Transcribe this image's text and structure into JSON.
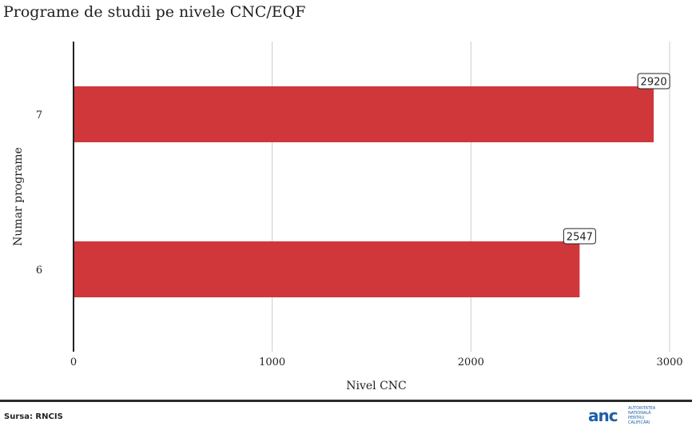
{
  "title": "Programe de studii pe nivele CNC/EQF",
  "source": "Sursa: RNCIS",
  "logo": {
    "word": "anc",
    "lines": [
      "Autoritatea",
      "Națională",
      "pentru",
      "Calificări"
    ]
  },
  "colors": {
    "bar": "#d0373a",
    "grid": "#cccccc",
    "axis": "#222222"
  },
  "chart_data": {
    "type": "bar",
    "orientation": "horizontal",
    "categories": [
      "7",
      "6"
    ],
    "values": [
      2920,
      2547
    ],
    "data_labels": [
      "2920",
      "2547"
    ],
    "xlabel": "Nivel CNC",
    "ylabel": "Numar programe",
    "xlim": [
      0,
      3000
    ],
    "xticks": [
      0,
      1000,
      2000,
      3000
    ],
    "grid": "vertical"
  }
}
